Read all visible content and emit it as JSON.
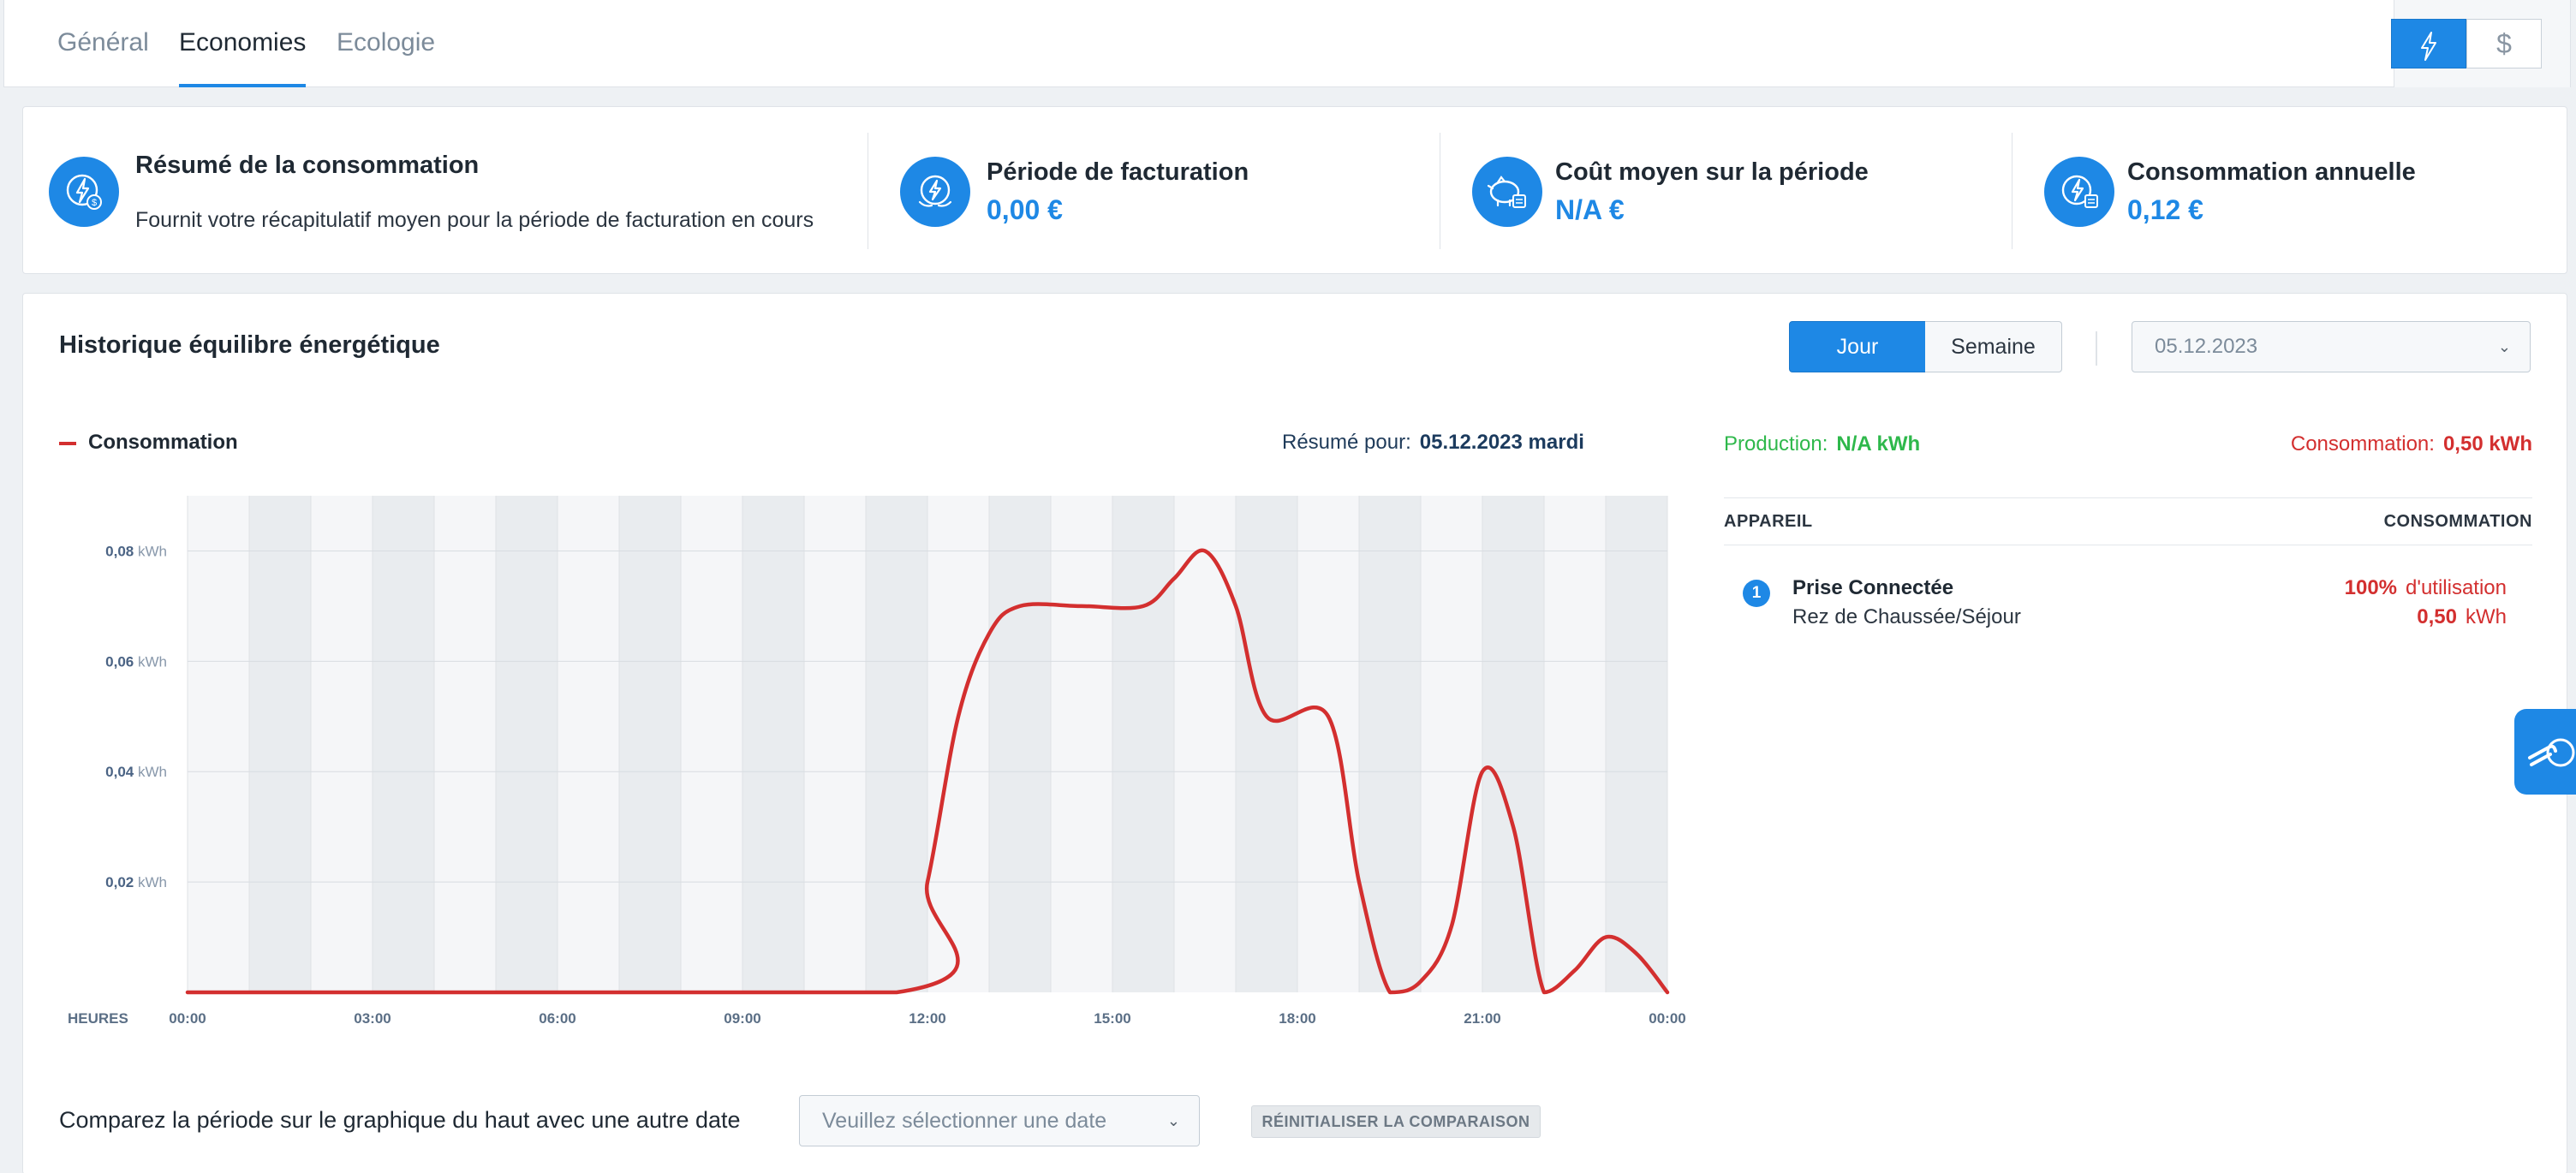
{
  "tabs": [
    {
      "label": "Général"
    },
    {
      "label": "Economies"
    },
    {
      "label": "Ecologie"
    }
  ],
  "active_tab": "Economies",
  "units": {
    "energy": "energy-icon",
    "currency": "$"
  },
  "summary": {
    "intro": {
      "title": "Résumé de la consommation",
      "description": "Fournit votre récapitulatif moyen pour la période de facturation en cours"
    },
    "items": [
      {
        "title": "Période de facturation",
        "value": "0,00 €",
        "icon": "billing-icon"
      },
      {
        "title": "Coût moyen sur la période",
        "value": "N/A €",
        "icon": "piggy-bank-icon"
      },
      {
        "title": "Consommation annuelle",
        "value": "0,12 €",
        "icon": "annual-energy-icon"
      }
    ]
  },
  "history": {
    "title": "Historique équilibre énergétique",
    "period_toggle": {
      "day": "Jour",
      "week": "Semaine"
    },
    "date_select": "05.12.2023",
    "legend": "Consommation",
    "resume_label": "Résumé pour:",
    "resume_date": "05.12.2023 mardi",
    "production_label": "Production:",
    "production_value": "N/A kWh",
    "consumption_label": "Consommation:",
    "consumption_value": "0,50 kWh",
    "table": {
      "col_device": "APPAREIL",
      "col_consumption": "CONSOMMATION",
      "rows": [
        {
          "index": "1",
          "name": "Prise Connectée",
          "location": "Rez de Chaussée/Séjour",
          "percent": "100%",
          "percent_label": "d'utilisation",
          "kwh": "0,50",
          "kwh_unit": "kWh"
        }
      ]
    },
    "compare_label": "Comparez la période sur le graphique du haut avec une autre date",
    "compare_placeholder": "Veuillez sélectionner une date",
    "compare_reset": "RÉINITIALISER LA COMPARAISON"
  },
  "chart_data": {
    "type": "line",
    "title": "",
    "xlabel": "HEURES",
    "ylabel": "kWh",
    "y_unit": "kWh",
    "ylim": [
      0,
      0.09
    ],
    "yticks": [
      "0,02",
      "0,04",
      "0,06",
      "0,08"
    ],
    "ytick_values": [
      0.02,
      0.04,
      0.06,
      0.08
    ],
    "xticks": [
      "00:00",
      "03:00",
      "06:00",
      "09:00",
      "12:00",
      "15:00",
      "18:00",
      "21:00",
      "00:00"
    ],
    "xtick_hours": [
      0,
      3,
      6,
      9,
      12,
      15,
      18,
      21,
      24
    ],
    "grid": true,
    "series": [
      {
        "name": "Consommation",
        "color": "#d32f2f",
        "points": [
          [
            0,
            0
          ],
          [
            11.5,
            0
          ],
          [
            12.0,
            0.02
          ],
          [
            12.5,
            0.05
          ],
          [
            13.0,
            0.065
          ],
          [
            13.5,
            0.07
          ],
          [
            14.5,
            0.07
          ],
          [
            15.5,
            0.07
          ],
          [
            16.0,
            0.075
          ],
          [
            16.5,
            0.08
          ],
          [
            17.0,
            0.07
          ],
          [
            17.5,
            0.05
          ],
          [
            18.5,
            0.05
          ],
          [
            19.0,
            0.02
          ],
          [
            19.5,
            0
          ],
          [
            20.0,
            0.002
          ],
          [
            20.5,
            0.012
          ],
          [
            21.0,
            0.04
          ],
          [
            21.5,
            0.03
          ],
          [
            22.0,
            0
          ],
          [
            22.5,
            0.004
          ],
          [
            23.0,
            0.01
          ],
          [
            23.5,
            0.007
          ],
          [
            24.0,
            0
          ]
        ]
      }
    ]
  }
}
